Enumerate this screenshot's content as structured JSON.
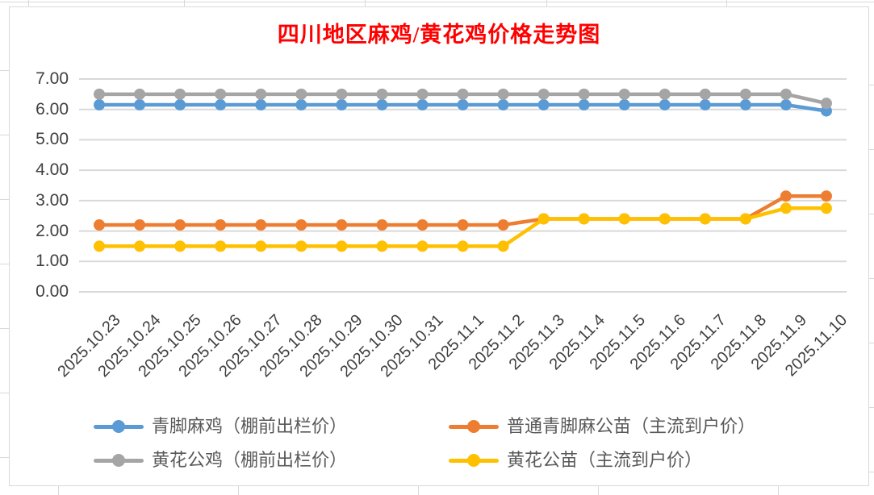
{
  "title": {
    "text": "四川地区麻鸡/黄花鸡价格走势图",
    "color": "#FF0000"
  },
  "chart_data": {
    "type": "line",
    "title": "四川地区麻鸡/黄花鸡价格走势图",
    "categories": [
      "2025.10.23",
      "2025.10.24",
      "2025.10.25",
      "2025.10.26",
      "2025.10.27",
      "2025.10.28",
      "2025.10.29",
      "2025.10.30",
      "2025.10.31",
      "2025.11.1",
      "2025.11.2",
      "2025.11.3",
      "2025.11.4",
      "2025.11.5",
      "2025.11.6",
      "2025.11.7",
      "2025.11.8",
      "2025.11.9",
      "2025.11.10"
    ],
    "series": [
      {
        "key": "qingjiao-maji",
        "name": "青脚麻鸡（棚前出栏价）",
        "color": "#5B9BD5",
        "values": [
          6.15,
          6.15,
          6.15,
          6.15,
          6.15,
          6.15,
          6.15,
          6.15,
          6.15,
          6.15,
          6.15,
          6.15,
          6.15,
          6.15,
          6.15,
          6.15,
          6.15,
          6.15,
          5.95
        ]
      },
      {
        "key": "putong-qingjiaoma-gongmiao",
        "name": "普通青脚麻公苗（主流到户价）",
        "color": "#ED7D31",
        "values": [
          2.2,
          2.2,
          2.2,
          2.2,
          2.2,
          2.2,
          2.2,
          2.2,
          2.2,
          2.2,
          2.2,
          2.4,
          2.4,
          2.4,
          2.4,
          2.4,
          2.4,
          3.15,
          3.15
        ]
      },
      {
        "key": "huanghua-gongji",
        "name": "黄花公鸡（棚前出栏价）",
        "color": "#A5A5A5",
        "values": [
          6.5,
          6.5,
          6.5,
          6.5,
          6.5,
          6.5,
          6.5,
          6.5,
          6.5,
          6.5,
          6.5,
          6.5,
          6.5,
          6.5,
          6.5,
          6.5,
          6.5,
          6.5,
          6.2
        ]
      },
      {
        "key": "huanghua-gongmiao",
        "name": "黄花公苗（主流到户价）",
        "color": "#FFC000",
        "values": [
          1.5,
          1.5,
          1.5,
          1.5,
          1.5,
          1.5,
          1.5,
          1.5,
          1.5,
          1.5,
          1.5,
          2.4,
          2.4,
          2.4,
          2.4,
          2.4,
          2.4,
          2.75,
          2.75
        ]
      }
    ],
    "ylim": [
      0,
      7
    ],
    "y_ticks": [
      "0.00",
      "1.00",
      "2.00",
      "3.00",
      "4.00",
      "5.00",
      "6.00",
      "7.00"
    ],
    "xlabel": "",
    "ylabel": "",
    "grid": true,
    "legend_position": "bottom",
    "tick_label_color": "#404040",
    "gridline_color": "#D9D9D9"
  }
}
